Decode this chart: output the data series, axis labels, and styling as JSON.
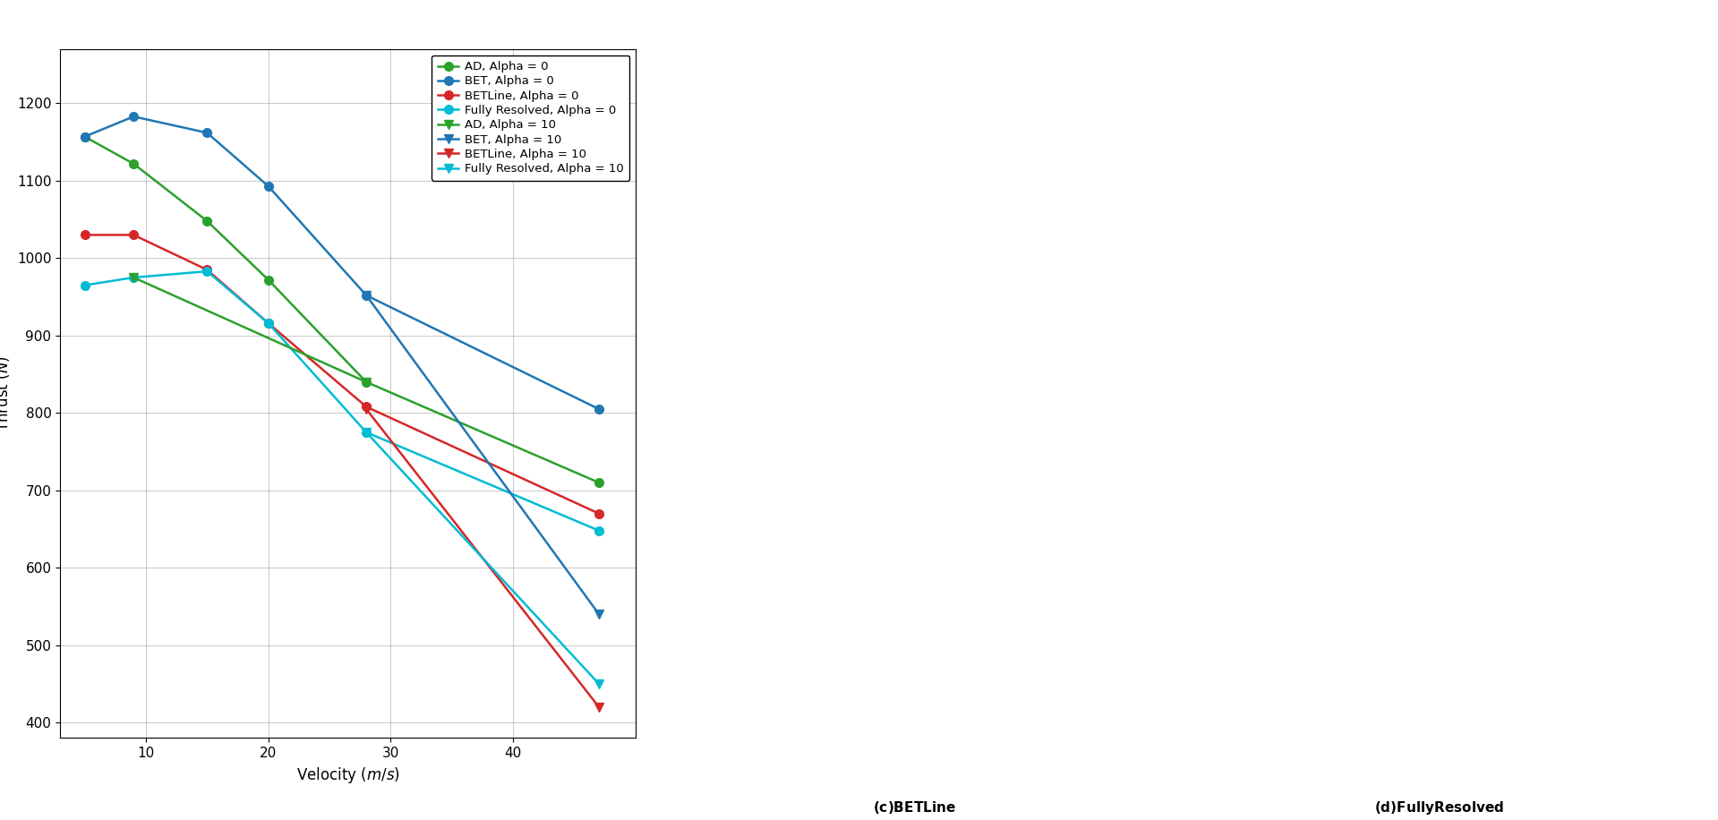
{
  "colors": {
    "AD": "#2ca02c",
    "BET": "#1f77b4",
    "BETLine": "#d62728",
    "FR": "#00bcd4"
  },
  "alpha0": {
    "AD": {
      "x": [
        5,
        9,
        15,
        20,
        28,
        47
      ],
      "y": [
        1157,
        1122,
        1048,
        972,
        840,
        710
      ]
    },
    "BET": {
      "x": [
        5,
        9,
        15,
        20,
        28,
        47
      ],
      "y": [
        1157,
        1183,
        1162,
        1093,
        952,
        805
      ]
    },
    "BETLine": {
      "x": [
        5,
        9,
        15,
        20,
        28,
        47
      ],
      "y": [
        1030,
        1030,
        985,
        916,
        808,
        670
      ]
    },
    "FR": {
      "x": [
        5,
        9,
        15,
        20,
        28,
        47
      ],
      "y": [
        965,
        975,
        983,
        916,
        775,
        648
      ]
    }
  },
  "alpha10": {
    "AD": {
      "x": [
        9,
        28
      ],
      "y": [
        975,
        840
      ]
    },
    "BET": {
      "x": [
        28,
        47
      ],
      "y": [
        952,
        540
      ]
    },
    "BETLine": {
      "x": [
        28,
        47
      ],
      "y": [
        805,
        420
      ]
    },
    "FR": {
      "x": [
        28,
        47
      ],
      "y": [
        775,
        450
      ]
    }
  },
  "legend_labels_alpha0": [
    "AD, Alpha = 0",
    "BET, Alpha = 0",
    "BETLine, Alpha = 0",
    "Fully Resolved, Alpha = 0"
  ],
  "legend_labels_alpha10": [
    "AD, Alpha = 10",
    "BET, Alpha = 10",
    "BETLine, Alpha = 10",
    "Fully Resolved, Alpha = 10"
  ],
  "xlabel": "Velocity ($m/s$)",
  "ylabel": "Thrust ($N$)",
  "xlim": [
    3,
    50
  ],
  "ylim": [
    380,
    1270
  ],
  "xticks": [
    10,
    20,
    30,
    40
  ],
  "yticks": [
    400,
    500,
    600,
    700,
    800,
    900,
    1000,
    1100,
    1200
  ],
  "markersize": 7,
  "linewidth": 1.8,
  "axis_fontsize": 12,
  "tick_fontsize": 11,
  "legend_fontsize": 9.5
}
